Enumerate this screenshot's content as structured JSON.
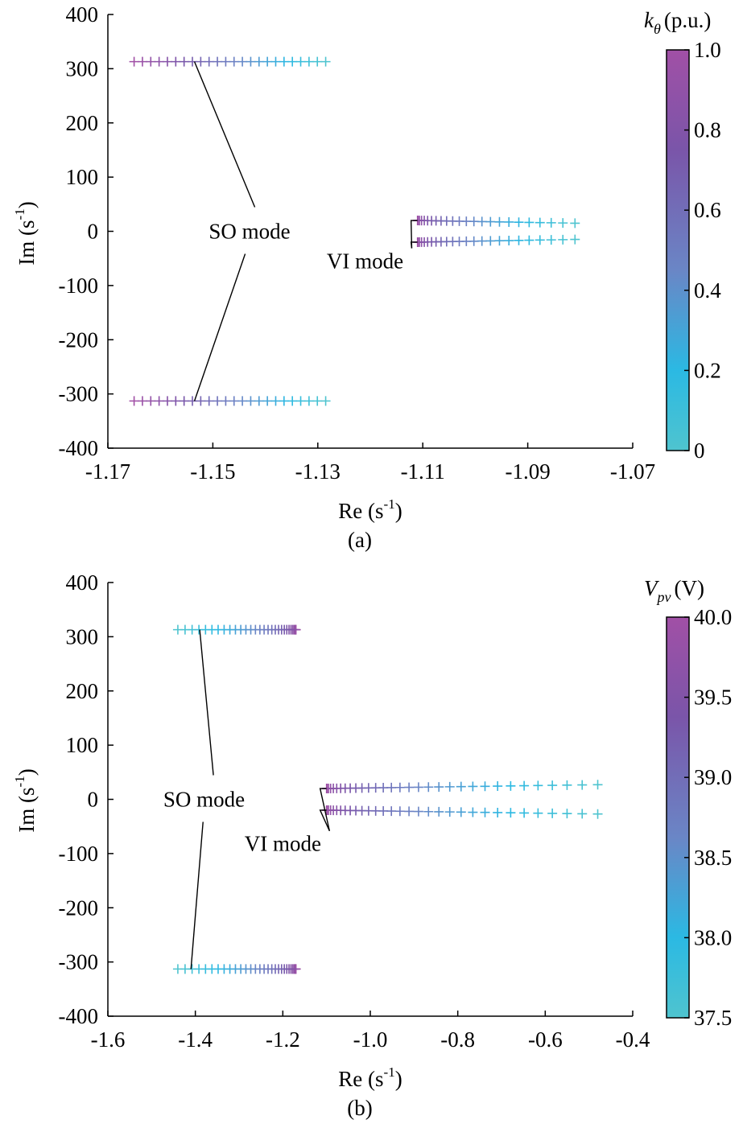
{
  "chart_data": [
    {
      "type": "scatter",
      "panel": "(a)",
      "xlabel_base": "Re (s",
      "xlabel_sup": "-1",
      "xlabel_end": ")",
      "ylabel_base": "Im (s",
      "ylabel_sup": "-1",
      "ylabel_end": ")",
      "xlim": [
        -1.17,
        -1.07
      ],
      "ylim": [
        -400,
        400
      ],
      "xticks": [
        -1.17,
        -1.15,
        -1.13,
        -1.11,
        -1.09,
        -1.07
      ],
      "xtick_labels": [
        "-1.17",
        "-1.15",
        "-1.13",
        "-1.11",
        "-1.09",
        "-1.07"
      ],
      "yticks": [
        400,
        300,
        200,
        100,
        0,
        -100,
        -200,
        -300,
        -400
      ],
      "ytick_labels": [
        "400",
        "300",
        "200",
        "100",
        "0",
        "-100",
        "-200",
        "-300",
        "-400"
      ],
      "colorbar": {
        "label_sym": "k",
        "label_sub": "θ",
        "label_unit": "(p.u.)",
        "range": [
          0,
          1.0
        ],
        "ticks": [
          1.0,
          0.8,
          0.6,
          0.4,
          0.2,
          0
        ],
        "tick_labels": [
          "1.0",
          "0.8",
          "0.6",
          "0.4",
          "0.2",
          "0"
        ]
      },
      "series": [
        {
          "mode": "SO",
          "branch": "upper",
          "x_start": -1.165,
          "x_end": -1.1285,
          "y": 313,
          "count": 24
        },
        {
          "mode": "SO",
          "branch": "lower",
          "x_start": -1.165,
          "x_end": -1.1285,
          "y": -313,
          "count": 24
        },
        {
          "mode": "VI",
          "branch": "upper",
          "x_start": -1.111,
          "x_end": -1.081,
          "y_start": 20,
          "y_end": 15,
          "count": 24,
          "spacing": "dense-at-start"
        },
        {
          "mode": "VI",
          "branch": "lower",
          "x_start": -1.111,
          "x_end": -1.081,
          "y_start": -20,
          "y_end": -15,
          "count": 24,
          "spacing": "dense-at-start"
        }
      ],
      "annotations": [
        {
          "text": "SO mode",
          "x": -1.143,
          "y": 0,
          "targets": [
            [
              -1.1535,
              313
            ],
            [
              -1.1535,
              -313
            ]
          ]
        },
        {
          "text": "VI mode",
          "x": -1.121,
          "y": -55,
          "targets": [
            [
              -1.111,
              20
            ],
            [
              -1.111,
              -20
            ]
          ]
        }
      ]
    },
    {
      "type": "scatter",
      "panel": "(b)",
      "xlabel_base": "Re (s",
      "xlabel_sup": "-1",
      "xlabel_end": ")",
      "ylabel_base": "Im (s",
      "ylabel_sup": "-1",
      "ylabel_end": ")",
      "xlim": [
        -1.6,
        -0.4
      ],
      "ylim": [
        -400,
        400
      ],
      "xticks": [
        -1.6,
        -1.4,
        -1.2,
        -1.0,
        -0.8,
        -0.6,
        -0.4
      ],
      "xtick_labels": [
        "-1.6",
        "-1.4",
        "-1.2",
        "-1.0",
        "-0.8",
        "-0.6",
        "-0.4"
      ],
      "yticks": [
        400,
        300,
        200,
        100,
        0,
        -100,
        -200,
        -300,
        -400
      ],
      "ytick_labels": [
        "400",
        "300",
        "200",
        "100",
        "0",
        "-100",
        "-200",
        "-300",
        "-400"
      ],
      "colorbar": {
        "label_sym": "V",
        "label_sub": "pv",
        "label_unit": "(V)",
        "range": [
          37.5,
          40.0
        ],
        "ticks": [
          40.0,
          39.5,
          39.0,
          38.5,
          38.0,
          37.5
        ],
        "tick_labels": [
          "40.0",
          "39.5",
          "39.0",
          "38.5",
          "38.0",
          "37.5"
        ]
      },
      "series": [
        {
          "mode": "SO",
          "branch": "upper",
          "x_start": -1.17,
          "x_end": -1.44,
          "y": 313,
          "count": 30,
          "spacing": "dense-at-start"
        },
        {
          "mode": "SO",
          "branch": "lower",
          "x_start": -1.17,
          "x_end": -1.44,
          "y": -313,
          "count": 30,
          "spacing": "dense-at-start"
        },
        {
          "mode": "VI",
          "branch": "upper",
          "x_start": -1.1,
          "x_end": -0.48,
          "y_start": 20,
          "y_end": 27,
          "count": 32,
          "spacing": "dense-at-start"
        },
        {
          "mode": "VI",
          "branch": "lower",
          "x_start": -1.1,
          "x_end": -0.48,
          "y_start": -20,
          "y_end": -27,
          "count": 32,
          "spacing": "dense-at-start"
        }
      ],
      "annotations": [
        {
          "text": "SO mode",
          "x": -1.38,
          "y": 0,
          "targets": [
            [
              -1.39,
              313
            ],
            [
              -1.41,
              -313
            ]
          ]
        },
        {
          "text": "VI mode",
          "x": -1.2,
          "y": -82,
          "targets": [
            [
              -1.1,
              20
            ],
            [
              -1.1,
              -20
            ]
          ]
        }
      ]
    }
  ],
  "colors": {
    "low": "#4fc4cf",
    "mid_low": "#2bb9e3",
    "mid": "#6a86c6",
    "mid_high": "#7a55a9",
    "high": "#a150a6"
  }
}
